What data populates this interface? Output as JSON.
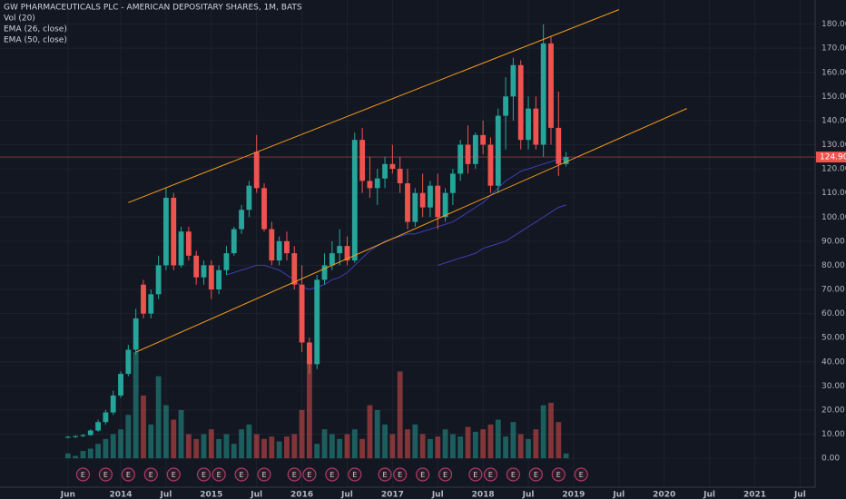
{
  "chart_data": {
    "type": "candlestick",
    "title": "GW PHARMACEUTICALS PLC - AMERICAN DEPOSITARY SHARES, 1M, BATS",
    "x": [
      "2013-06",
      "2013-07",
      "2013-08",
      "2013-09",
      "2013-10",
      "2013-11",
      "2013-12",
      "2014-01",
      "2014-02",
      "2014-03",
      "2014-04",
      "2014-05",
      "2014-06",
      "2014-07",
      "2014-08",
      "2014-09",
      "2014-10",
      "2014-11",
      "2014-12",
      "2015-01",
      "2015-02",
      "2015-03",
      "2015-04",
      "2015-05",
      "2015-06",
      "2015-07",
      "2015-08",
      "2015-09",
      "2015-10",
      "2015-11",
      "2015-12",
      "2016-01",
      "2016-02",
      "2016-03",
      "2016-04",
      "2016-05",
      "2016-06",
      "2016-07",
      "2016-08",
      "2016-09",
      "2016-10",
      "2016-11",
      "2016-12",
      "2017-01",
      "2017-02",
      "2017-03",
      "2017-04",
      "2017-05",
      "2017-06",
      "2017-07",
      "2017-08",
      "2017-09",
      "2017-10",
      "2017-11",
      "2017-12",
      "2018-01",
      "2018-02",
      "2018-03",
      "2018-04",
      "2018-05",
      "2018-06",
      "2018-07",
      "2018-08",
      "2018-09",
      "2018-10",
      "2018-11",
      "2018-12"
    ],
    "open": [
      8.6,
      8.9,
      9.2,
      9.6,
      11.5,
      15,
      19,
      26,
      35,
      45,
      72,
      60,
      68,
      80,
      108,
      80,
      94,
      84,
      75,
      80,
      70,
      78,
      85,
      95,
      103,
      127,
      112,
      95,
      82,
      90,
      85,
      72,
      48,
      39,
      74,
      80,
      85,
      88,
      82,
      132,
      115,
      112,
      116,
      122,
      120,
      114,
      98,
      110,
      104,
      113,
      100,
      110,
      118,
      130,
      122,
      134,
      130,
      113,
      142,
      150,
      163,
      132,
      145,
      130,
      172,
      137,
      122
    ],
    "high": [
      9.2,
      9.5,
      10,
      12,
      16,
      20,
      28,
      36,
      47,
      62,
      74,
      70,
      84,
      112,
      110,
      96,
      96,
      86,
      82,
      82,
      80,
      88,
      96,
      105,
      115,
      134,
      114,
      98,
      92,
      94,
      88,
      80,
      50,
      76,
      85,
      90,
      95,
      92,
      135,
      137,
      125,
      120,
      125,
      130,
      125,
      120,
      112,
      118,
      115,
      118,
      112,
      120,
      132,
      138,
      135,
      140,
      133,
      145,
      158,
      166,
      165,
      150,
      150,
      180,
      175,
      152,
      127
    ],
    "low": [
      8.3,
      8.4,
      8.8,
      9.3,
      11,
      14,
      18,
      25,
      34,
      43,
      58,
      58,
      66,
      78,
      78,
      79,
      82,
      72,
      72,
      66,
      68,
      76,
      84,
      93,
      100,
      110,
      94,
      80,
      80,
      82,
      70,
      44,
      35,
      37,
      72,
      78,
      80,
      80,
      81,
      110,
      108,
      105,
      112,
      118,
      110,
      95,
      96,
      100,
      100,
      95,
      98,
      105,
      115,
      118,
      120,
      126,
      110,
      110,
      128,
      140,
      128,
      128,
      128,
      125,
      130,
      117,
      121
    ],
    "close": [
      8.9,
      9.2,
      9.6,
      11.5,
      15,
      19,
      26,
      35,
      45,
      58,
      60,
      68,
      80,
      108,
      80,
      94,
      84,
      75,
      80,
      70,
      78,
      85,
      95,
      103,
      113,
      112,
      95,
      82,
      90,
      85,
      72,
      48,
      39,
      74,
      80,
      85,
      88,
      82,
      132,
      115,
      112,
      116,
      122,
      120,
      114,
      98,
      110,
      104,
      113,
      100,
      110,
      118,
      130,
      122,
      134,
      130,
      113,
      142,
      150,
      163,
      132,
      145,
      130,
      172,
      137,
      122,
      124.9
    ],
    "up_color": "#26a69a",
    "down_color": "#ef5350",
    "volume": {
      "name": "Vol (20)",
      "values": [
        2,
        1,
        3,
        4,
        6,
        8,
        10,
        12,
        18,
        44,
        26,
        14,
        34,
        22,
        16,
        20,
        10,
        8,
        10,
        12,
        8,
        10,
        6,
        12,
        14,
        10,
        8,
        9,
        7,
        9,
        10,
        20,
        42,
        6,
        12,
        10,
        8,
        10,
        12,
        8,
        22,
        20,
        14,
        10,
        36,
        12,
        14,
        10,
        8,
        9,
        12,
        10,
        9,
        13,
        11,
        12,
        14,
        16,
        9,
        15,
        10,
        8,
        12,
        22,
        23,
        15,
        2
      ]
    },
    "lines": [
      {
        "name": "EMA (26, close)",
        "color": "#3f3fb0",
        "values": [
          null,
          null,
          null,
          null,
          null,
          null,
          null,
          null,
          null,
          null,
          null,
          null,
          null,
          null,
          null,
          null,
          null,
          null,
          null,
          null,
          null,
          76,
          77,
          78,
          79,
          80,
          80,
          79,
          78,
          76,
          74,
          71,
          70,
          71,
          72,
          74,
          75,
          77,
          80,
          83,
          86,
          88,
          90,
          91,
          92,
          93,
          93,
          94,
          95,
          96,
          97,
          98,
          100,
          102,
          104,
          106,
          109,
          112,
          115,
          117,
          119,
          120,
          121,
          122,
          123,
          124,
          124
        ]
      },
      {
        "name": "EMA (50, close)",
        "color": "#3f3fb0",
        "values": [
          null,
          null,
          null,
          null,
          null,
          null,
          null,
          null,
          null,
          null,
          null,
          null,
          null,
          null,
          null,
          null,
          null,
          null,
          null,
          null,
          null,
          null,
          null,
          null,
          null,
          null,
          null,
          null,
          null,
          null,
          null,
          null,
          null,
          null,
          null,
          null,
          null,
          null,
          null,
          null,
          null,
          null,
          null,
          null,
          null,
          null,
          null,
          null,
          null,
          80,
          81,
          82,
          83,
          84,
          85,
          87,
          88,
          89,
          90,
          92,
          94,
          96,
          98,
          100,
          102,
          104,
          105
        ]
      }
    ],
    "trendlines": [
      {
        "color": "#f59c1a",
        "x": [
          "2014-02",
          "2019-07"
        ],
        "y": [
          106,
          186
        ]
      },
      {
        "color": "#f59c1a",
        "x": [
          "2014-03",
          "2020-04"
        ],
        "y": [
          44,
          145
        ]
      }
    ],
    "last_price": 124.9,
    "last_price_label": "124.90",
    "last_price_color": "#ef5350",
    "earnings_label": "E",
    "earnings": [
      "2013-08",
      "2013-11",
      "2014-02",
      "2014-05",
      "2014-08",
      "2014-12",
      "2015-02",
      "2015-05",
      "2015-08",
      "2015-12",
      "2016-02",
      "2016-05",
      "2016-08",
      "2016-12",
      "2017-02",
      "2017-05",
      "2017-08",
      "2017-12",
      "2018-02",
      "2018-05",
      "2018-08",
      "2018-11",
      "2019-02"
    ],
    "xlim": [
      "2012-09",
      "2021-09"
    ],
    "xticks": [
      {
        "value": "2013-06",
        "label": "Jun"
      },
      {
        "value": "2014-01",
        "label": "2014"
      },
      {
        "value": "2014-07",
        "label": "Jul"
      },
      {
        "value": "2015-01",
        "label": "2015"
      },
      {
        "value": "2015-07",
        "label": "Jul"
      },
      {
        "value": "2016-01",
        "label": "2016"
      },
      {
        "value": "2016-07",
        "label": "Jul"
      },
      {
        "value": "2017-01",
        "label": "2017"
      },
      {
        "value": "2017-07",
        "label": "Jul"
      },
      {
        "value": "2018-01",
        "label": "2018"
      },
      {
        "value": "2018-07",
        "label": "Jul"
      },
      {
        "value": "2019-01",
        "label": "2019"
      },
      {
        "value": "2019-07",
        "label": "Jul"
      },
      {
        "value": "2020-01",
        "label": "2020"
      },
      {
        "value": "2020-07",
        "label": "Jul"
      },
      {
        "value": "2021-01",
        "label": "2021"
      },
      {
        "value": "2021-07",
        "label": "Jul"
      }
    ],
    "ylim": [
      -12,
      190
    ],
    "yticks": [
      {
        "value": 0,
        "label": "0.00"
      },
      {
        "value": 10,
        "label": "10.00"
      },
      {
        "value": 20,
        "label": "20.00"
      },
      {
        "value": 30,
        "label": "30.00"
      },
      {
        "value": 40,
        "label": "40.00"
      },
      {
        "value": 50,
        "label": "50.00"
      },
      {
        "value": 60,
        "label": "60.00"
      },
      {
        "value": 70,
        "label": "70.00"
      },
      {
        "value": 80,
        "label": "80.00"
      },
      {
        "value": 90,
        "label": "90.00"
      },
      {
        "value": 100,
        "label": "100.00"
      },
      {
        "value": 110,
        "label": "110.00"
      },
      {
        "value": 120,
        "label": "120.00"
      },
      {
        "value": 130,
        "label": "130.00"
      },
      {
        "value": 140,
        "label": "140.00"
      },
      {
        "value": 150,
        "label": "150.00"
      },
      {
        "value": 160,
        "label": "160.00"
      },
      {
        "value": 170,
        "label": "170.00"
      },
      {
        "value": 180,
        "label": "180.00"
      }
    ],
    "grid": true
  }
}
